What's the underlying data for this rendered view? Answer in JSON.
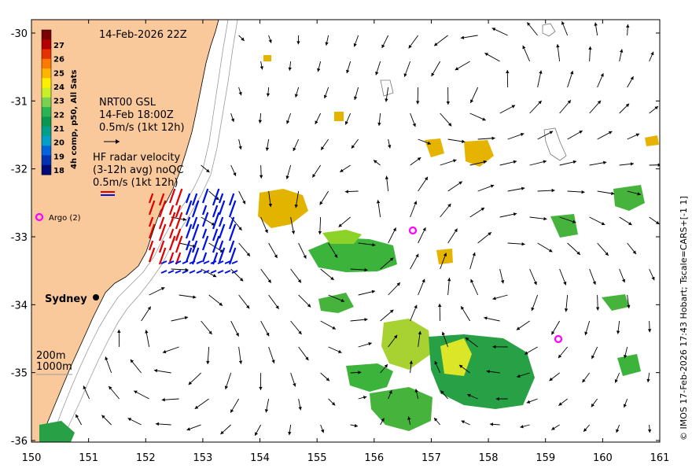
{
  "map": {
    "title": "14-Feb-2026 22Z",
    "colorbar": {
      "label": "4h comp, p50, All Sats",
      "ticks": [
        "27",
        "26",
        "25",
        "24",
        "23",
        "22",
        "21",
        "20",
        "19",
        "18"
      ],
      "colors": [
        "#7a0000",
        "#b40000",
        "#e63200",
        "#ff7800",
        "#ffb400",
        "#fff000",
        "#c8f028",
        "#78d250",
        "#28b450",
        "#0a9650",
        "#00a08c",
        "#00a0c8",
        "#0064dc",
        "#0032b4",
        "#000a78"
      ]
    },
    "gsl": {
      "line1": "NRT00 GSL",
      "line2": "14-Feb 18:00Z",
      "line3": "0.5m/s (1kt 12h)"
    },
    "hf": {
      "line1": "HF radar velocity",
      "line2": "(3-12h avg) noQC",
      "line3": "0.5m/s (1kt 12h)"
    },
    "argo_label": "Argo (2)",
    "city": "Sydney",
    "isobath_200": "200m",
    "isobath_1000": "1000m",
    "credit": "© IMOS 17-Feb-2026 17:43 Hobart; Tscale=CARS+[-1 1]",
    "x_ticks": [
      "150",
      "151",
      "152",
      "153",
      "154",
      "155",
      "156",
      "157",
      "158",
      "159",
      "160",
      "161"
    ],
    "y_ticks": [
      "-30",
      "-31",
      "-32",
      "-33",
      "-34",
      "-35",
      "-36"
    ],
    "colors": {
      "land": "#f9c89b",
      "vector": "#000000",
      "hf_red": "#e00000",
      "hf_blue": "#0010e0",
      "argo": "#ff00ff"
    }
  }
}
